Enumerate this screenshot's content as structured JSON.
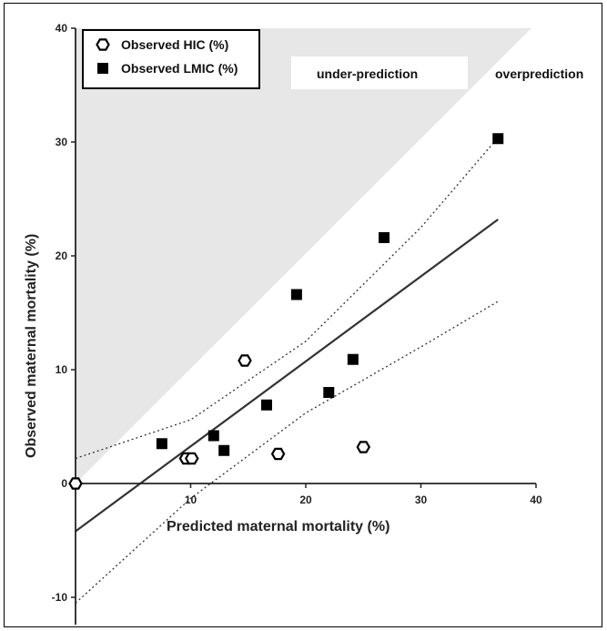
{
  "chart_data": {
    "type": "scatter",
    "title": "",
    "xlabel": "Predicted maternal mortality (%)",
    "ylabel": "Observed maternal mortality (%)",
    "xlim": [
      0,
      40
    ],
    "ylim": [
      -12,
      40
    ],
    "x_ticks": [
      10,
      20,
      30,
      40
    ],
    "y_ticks": [
      -10,
      0,
      10,
      20,
      30,
      40
    ],
    "legend_position": "top-left",
    "region_labels": {
      "under": "under-prediction",
      "over": "overprediction"
    },
    "series": [
      {
        "name": "Observed HIC (%)",
        "marker": "open-hexagon",
        "points": [
          [
            0,
            0
          ],
          [
            9.6,
            2.2
          ],
          [
            10.1,
            2.2
          ],
          [
            14.7,
            10.8
          ],
          [
            17.6,
            2.6
          ],
          [
            25,
            3.2
          ]
        ]
      },
      {
        "name": "Observed LMIC (%)",
        "marker": "filled-square",
        "points": [
          [
            7.5,
            3.5
          ],
          [
            12,
            4.2
          ],
          [
            12.9,
            2.9
          ],
          [
            16.6,
            6.9
          ],
          [
            19.2,
            16.6
          ],
          [
            22,
            8
          ],
          [
            24.1,
            10.9
          ],
          [
            26.8,
            21.6
          ],
          [
            36.7,
            30.3
          ]
        ]
      }
    ],
    "regression_line": [
      [
        0,
        -4.2
      ],
      [
        36.7,
        23.2
      ]
    ],
    "confidence_band_upper": [
      [
        0,
        2.2
      ],
      [
        10,
        5.6
      ],
      [
        20,
        12.5
      ],
      [
        30,
        22.5
      ],
      [
        36.7,
        30.4
      ]
    ],
    "confidence_band_lower": [
      [
        0,
        -10.5
      ],
      [
        10,
        -1.3
      ],
      [
        20,
        6.2
      ],
      [
        30,
        12
      ],
      [
        36.7,
        16
      ]
    ],
    "shaded_region": [
      [
        0,
        0
      ],
      [
        0,
        40
      ],
      [
        39.6,
        40
      ]
    ],
    "colors": {
      "shade": "#e7e7e7",
      "line": "#333333",
      "marker": "#000000"
    }
  }
}
